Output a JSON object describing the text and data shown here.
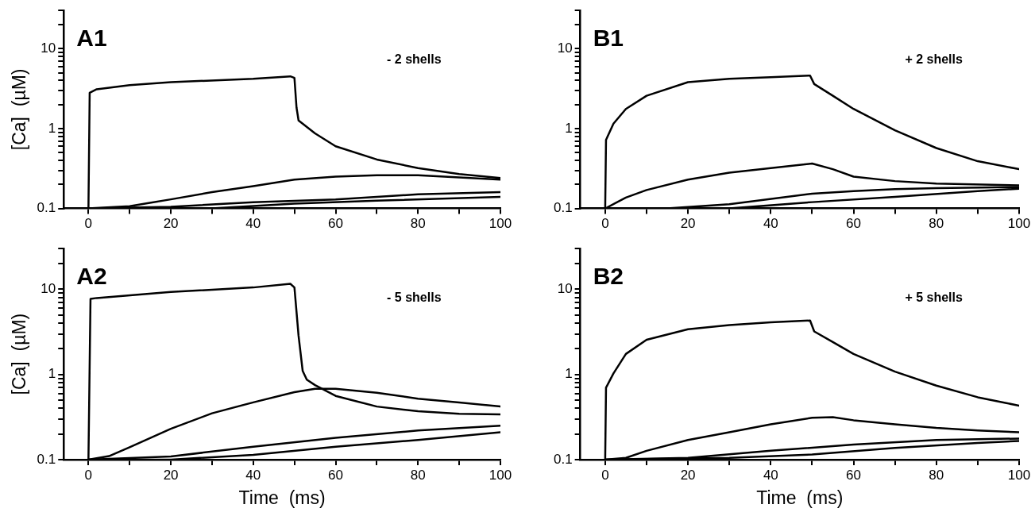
{
  "chart_data": [
    {
      "type": "line",
      "title": "A1",
      "annotations": [
        "- 2 shells"
      ],
      "ylabel": "[Ca]  (µM)",
      "log": "y",
      "marker": "none",
      "line_style": "solid",
      "xlim": [
        -6,
        100
      ],
      "xticks": [
        0,
        {
          "value": 10,
          "label": null
        },
        20,
        {
          "value": 30,
          "label": null
        },
        40,
        {
          "value": 50,
          "label": null
        },
        60,
        {
          "value": 70,
          "label": null
        },
        80,
        {
          "value": 90,
          "label": null
        },
        100
      ],
      "ylim": [
        0.1,
        30
      ],
      "yticks": [
        0.1,
        {
          "value": 0.2,
          "label": null
        },
        {
          "value": 0.3,
          "label": null
        },
        {
          "value": 0.4,
          "label": null
        },
        {
          "value": 0.5,
          "label": null
        },
        {
          "value": 0.6,
          "label": null
        },
        {
          "value": 0.7,
          "label": null
        },
        {
          "value": 0.8,
          "label": null
        },
        {
          "value": 0.9,
          "label": null
        },
        1,
        {
          "value": 2,
          "label": null
        },
        {
          "value": 3,
          "label": null
        },
        {
          "value": 4,
          "label": null
        },
        {
          "value": 5,
          "label": null
        },
        {
          "value": 6,
          "label": null
        },
        {
          "value": 7,
          "label": null
        },
        {
          "value": 8,
          "label": null
        },
        {
          "value": 9,
          "label": null
        },
        10,
        {
          "value": 20,
          "label": null
        },
        {
          "value": 30,
          "label": null
        }
      ],
      "series": [
        {
          "color": "#000000",
          "x": [
            0,
            0.3,
            2,
            10,
            20,
            40,
            49,
            50,
            50.5,
            51,
            55,
            60,
            70,
            80,
            90,
            100
          ],
          "values": [
            0.1,
            2.8,
            3.1,
            3.5,
            3.8,
            4.2,
            4.5,
            4.3,
            1.84,
            1.26,
            0.87,
            0.6,
            0.41,
            0.32,
            0.27,
            0.24
          ]
        },
        {
          "color": "#000000",
          "x": [
            0,
            10,
            20,
            30,
            40,
            50,
            60,
            70,
            80,
            90,
            100
          ],
          "values": [
            0.1,
            0.107,
            0.13,
            0.16,
            0.19,
            0.23,
            0.25,
            0.26,
            0.26,
            0.245,
            0.23
          ]
        },
        {
          "color": "#000000",
          "x": [
            0,
            20,
            40,
            60,
            80,
            100
          ],
          "values": [
            0.1,
            0.105,
            0.12,
            0.13,
            0.15,
            0.16
          ]
        },
        {
          "color": "#000000",
          "x": [
            0,
            30,
            50,
            70,
            100
          ],
          "values": [
            0.1,
            0.1,
            0.115,
            0.125,
            0.14
          ]
        }
      ]
    },
    {
      "type": "line",
      "title": "B1",
      "annotations": [
        "+ 2 shells"
      ],
      "log": "y",
      "marker": "none",
      "line_style": "solid",
      "xlim": [
        -6,
        100
      ],
      "xticks": [
        0,
        {
          "value": 10,
          "label": null
        },
        20,
        {
          "value": 30,
          "label": null
        },
        40,
        {
          "value": 50,
          "label": null
        },
        60,
        {
          "value": 70,
          "label": null
        },
        80,
        {
          "value": 90,
          "label": null
        },
        100
      ],
      "ylim": [
        0.1,
        30
      ],
      "yticks": [
        0.1,
        {
          "value": 0.2,
          "label": null
        },
        {
          "value": 0.3,
          "label": null
        },
        {
          "value": 0.4,
          "label": null
        },
        {
          "value": 0.5,
          "label": null
        },
        {
          "value": 0.6,
          "label": null
        },
        {
          "value": 0.7,
          "label": null
        },
        {
          "value": 0.8,
          "label": null
        },
        {
          "value": 0.9,
          "label": null
        },
        1,
        {
          "value": 2,
          "label": null
        },
        {
          "value": 3,
          "label": null
        },
        {
          "value": 4,
          "label": null
        },
        {
          "value": 5,
          "label": null
        },
        {
          "value": 6,
          "label": null
        },
        {
          "value": 7,
          "label": null
        },
        {
          "value": 8,
          "label": null
        },
        {
          "value": 9,
          "label": null
        },
        10,
        {
          "value": 20,
          "label": null
        },
        {
          "value": 30,
          "label": null
        }
      ],
      "series": [
        {
          "color": "#000000",
          "x": [
            0,
            0.2,
            2,
            5,
            10,
            20,
            30,
            40,
            49.5,
            50.5,
            55,
            60,
            70,
            80,
            90,
            100
          ],
          "values": [
            0.1,
            0.72,
            1.15,
            1.76,
            2.57,
            3.8,
            4.2,
            4.4,
            4.6,
            3.6,
            2.57,
            1.76,
            0.95,
            0.57,
            0.39,
            0.31
          ]
        },
        {
          "color": "#000000",
          "x": [
            0,
            5,
            10,
            20,
            30,
            40,
            50,
            55,
            60,
            70,
            80,
            100
          ],
          "values": [
            0.1,
            0.137,
            0.17,
            0.23,
            0.28,
            0.32,
            0.365,
            0.31,
            0.25,
            0.22,
            0.205,
            0.195
          ]
        },
        {
          "color": "#000000",
          "x": [
            0,
            15,
            30,
            50,
            60,
            70,
            80,
            100
          ],
          "values": [
            0.1,
            0.1,
            0.113,
            0.153,
            0.165,
            0.175,
            0.18,
            0.185
          ]
        },
        {
          "color": "#000000",
          "x": [
            0,
            30,
            50,
            70,
            90,
            100
          ],
          "values": [
            0.1,
            0.1,
            0.12,
            0.14,
            0.165,
            0.177
          ]
        }
      ]
    },
    {
      "type": "line",
      "title": "A2",
      "annotations": [
        "- 5 shells"
      ],
      "xlabel": "Time  (ms)",
      "ylabel": "[Ca]  (µM)",
      "log": "y",
      "marker": "none",
      "line_style": "solid",
      "xlim": [
        -6,
        100
      ],
      "xticks": [
        0,
        {
          "value": 10,
          "label": null
        },
        20,
        {
          "value": 30,
          "label": null
        },
        40,
        {
          "value": 50,
          "label": null
        },
        60,
        {
          "value": 70,
          "label": null
        },
        80,
        {
          "value": 90,
          "label": null
        },
        100
      ],
      "ylim": [
        0.1,
        30
      ],
      "yticks": [
        0.1,
        {
          "value": 0.2,
          "label": null
        },
        {
          "value": 0.3,
          "label": null
        },
        {
          "value": 0.4,
          "label": null
        },
        {
          "value": 0.5,
          "label": null
        },
        {
          "value": 0.6,
          "label": null
        },
        {
          "value": 0.7,
          "label": null
        },
        {
          "value": 0.8,
          "label": null
        },
        {
          "value": 0.9,
          "label": null
        },
        1,
        {
          "value": 2,
          "label": null
        },
        {
          "value": 3,
          "label": null
        },
        {
          "value": 4,
          "label": null
        },
        {
          "value": 5,
          "label": null
        },
        {
          "value": 6,
          "label": null
        },
        {
          "value": 7,
          "label": null
        },
        {
          "value": 8,
          "label": null
        },
        {
          "value": 9,
          "label": null
        },
        10,
        {
          "value": 20,
          "label": null
        },
        {
          "value": 30,
          "label": null
        }
      ],
      "series": [
        {
          "color": "#000000",
          "x": [
            0,
            0.5,
            2,
            20,
            40,
            49,
            50,
            51,
            52,
            53,
            55,
            60,
            70,
            80,
            90,
            100
          ],
          "values": [
            0.1,
            7.7,
            7.9,
            9.3,
            10.5,
            11.6,
            10.5,
            2.85,
            1.1,
            0.87,
            0.75,
            0.56,
            0.42,
            0.37,
            0.345,
            0.34
          ]
        },
        {
          "color": "#000000",
          "x": [
            0,
            5,
            10,
            20,
            30,
            40,
            50,
            55,
            60,
            70,
            80,
            90,
            100
          ],
          "values": [
            0.1,
            0.11,
            0.14,
            0.23,
            0.35,
            0.47,
            0.62,
            0.68,
            0.68,
            0.61,
            0.52,
            0.47,
            0.42
          ]
        },
        {
          "color": "#000000",
          "x": [
            0,
            20,
            40,
            60,
            80,
            100
          ],
          "values": [
            0.1,
            0.109,
            0.142,
            0.18,
            0.22,
            0.25
          ]
        },
        {
          "color": "#000000",
          "x": [
            0,
            20,
            40,
            60,
            80,
            100
          ],
          "values": [
            0.1,
            0.1,
            0.114,
            0.142,
            0.17,
            0.21
          ]
        }
      ]
    },
    {
      "type": "line",
      "title": "B2",
      "annotations": [
        "+ 5 shells"
      ],
      "xlabel": "Time  (ms)",
      "log": "y",
      "marker": "none",
      "line_style": "solid",
      "xlim": [
        -6,
        100
      ],
      "xticks": [
        0,
        {
          "value": 10,
          "label": null
        },
        20,
        {
          "value": 30,
          "label": null
        },
        40,
        {
          "value": 50,
          "label": null
        },
        60,
        {
          "value": 70,
          "label": null
        },
        80,
        {
          "value": 90,
          "label": null
        },
        100
      ],
      "ylim": [
        0.1,
        30
      ],
      "yticks": [
        0.1,
        {
          "value": 0.2,
          "label": null
        },
        {
          "value": 0.3,
          "label": null
        },
        {
          "value": 0.4,
          "label": null
        },
        {
          "value": 0.5,
          "label": null
        },
        {
          "value": 0.6,
          "label": null
        },
        {
          "value": 0.7,
          "label": null
        },
        {
          "value": 0.8,
          "label": null
        },
        {
          "value": 0.9,
          "label": null
        },
        1,
        {
          "value": 2,
          "label": null
        },
        {
          "value": 3,
          "label": null
        },
        {
          "value": 4,
          "label": null
        },
        {
          "value": 5,
          "label": null
        },
        {
          "value": 6,
          "label": null
        },
        {
          "value": 7,
          "label": null
        },
        {
          "value": 8,
          "label": null
        },
        {
          "value": 9,
          "label": null
        },
        10,
        {
          "value": 20,
          "label": null
        },
        {
          "value": 30,
          "label": null
        }
      ],
      "series": [
        {
          "color": "#000000",
          "x": [
            0,
            0.2,
            2,
            5,
            10,
            20,
            30,
            40,
            49.5,
            50.5,
            55,
            60,
            70,
            80,
            90,
            100
          ],
          "values": [
            0.1,
            0.7,
            1.03,
            1.74,
            2.55,
            3.4,
            3.8,
            4.1,
            4.3,
            3.2,
            2.4,
            1.74,
            1.08,
            0.74,
            0.54,
            0.43
          ]
        },
        {
          "color": "#000000",
          "x": [
            0,
            5,
            10,
            20,
            30,
            40,
            50,
            55,
            60,
            70,
            80,
            90,
            100
          ],
          "values": [
            0.1,
            0.105,
            0.127,
            0.17,
            0.21,
            0.26,
            0.31,
            0.315,
            0.29,
            0.26,
            0.236,
            0.22,
            0.21
          ]
        },
        {
          "color": "#000000",
          "x": [
            0,
            20,
            40,
            60,
            80,
            100
          ],
          "values": [
            0.1,
            0.105,
            0.127,
            0.15,
            0.17,
            0.177
          ]
        },
        {
          "color": "#000000",
          "x": [
            0,
            30,
            50,
            70,
            90,
            100
          ],
          "values": [
            0.1,
            0.105,
            0.115,
            0.137,
            0.157,
            0.166
          ]
        }
      ]
    }
  ]
}
